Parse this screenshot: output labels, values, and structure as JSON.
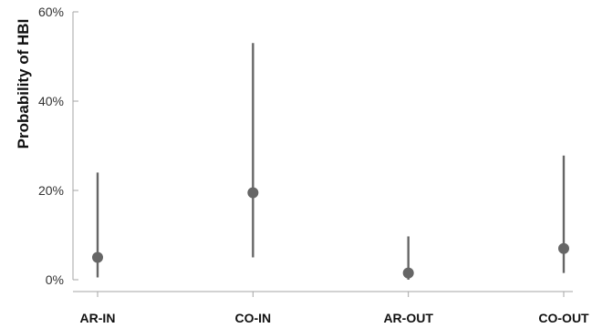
{
  "chart_data": {
    "type": "scatter",
    "title": "",
    "xlabel": "",
    "ylabel": "Probability of HBI",
    "categories": [
      "AR-IN",
      "CO-IN",
      "AR-OUT",
      "CO-OUT"
    ],
    "estimates": [
      0.05,
      0.195,
      0.015,
      0.07
    ],
    "lower": [
      0.005,
      0.05,
      0.0,
      0.015
    ],
    "upper": [
      0.24,
      0.53,
      0.097,
      0.278
    ],
    "yticks": [
      0,
      0.2,
      0.4,
      0.6
    ],
    "ytick_labels": [
      "0%",
      "20%",
      "40%",
      "60%"
    ],
    "ylim": [
      0,
      0.6
    ],
    "grid": false,
    "legend": "none",
    "colors": {
      "point": "#666666",
      "axis": "#a6a6a6"
    }
  }
}
